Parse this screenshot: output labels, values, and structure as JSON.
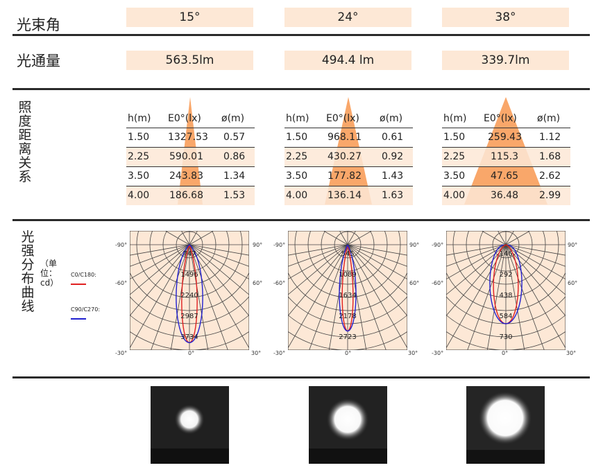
{
  "beam_angle": {
    "label": "光束角",
    "values": [
      "15°",
      "24°",
      "38°"
    ]
  },
  "luminous_flux": {
    "label": "光通量",
    "values": [
      "563.5lm",
      "494.4 lm",
      "339.7lm"
    ]
  },
  "illuminance": {
    "label": "照度距离关系",
    "headers": [
      "h(m)",
      "E0°(lx)",
      "ø(m)"
    ],
    "tables": [
      {
        "rows": [
          [
            "1.50",
            "1327.53",
            "0.57"
          ],
          [
            "2.25",
            "590.01",
            "0.86"
          ],
          [
            "3.50",
            "243.83",
            "1.34"
          ],
          [
            "4.00",
            "186.68",
            "1.53"
          ]
        ]
      },
      {
        "rows": [
          [
            "1.50",
            "968.11",
            "0.61"
          ],
          [
            "2.25",
            "430.27",
            "0.92"
          ],
          [
            "3.50",
            "177.82",
            "1.43"
          ],
          [
            "4.00",
            "136.14",
            "1.63"
          ]
        ]
      },
      {
        "rows": [
          [
            "1.50",
            "259.43",
            "1.12"
          ],
          [
            "2.25",
            "115.3",
            "1.68"
          ],
          [
            "3.50",
            "47.65",
            "2.62"
          ],
          [
            "4.00",
            "36.48",
            "2.99"
          ]
        ]
      }
    ]
  },
  "intensity": {
    "label": "光强分布曲线",
    "unit": "（单位：cd）",
    "legend": [
      {
        "name": "C0/C180:",
        "color": "#e02020"
      },
      {
        "name": "C90/C270:",
        "color": "#2020d0"
      }
    ],
    "angles": {
      "left90": "-90°",
      "left60": "-60°",
      "left30": "-30°",
      "right90": "90°",
      "right60": "60°",
      "right30": "30°",
      "zero": "0°"
    },
    "charts": [
      {
        "ticks": [
          "747",
          "1496",
          "2240",
          "2987",
          "3734"
        ]
      },
      {
        "ticks": [
          "545",
          "1089",
          "1634",
          "2178",
          "2723"
        ]
      },
      {
        "ticks": [
          "146",
          "292",
          "438",
          "584",
          "730"
        ]
      }
    ]
  },
  "colors": {
    "accent": "#fde8d6",
    "cone": "#f9a76a",
    "rule": "#2a2a2a"
  }
}
